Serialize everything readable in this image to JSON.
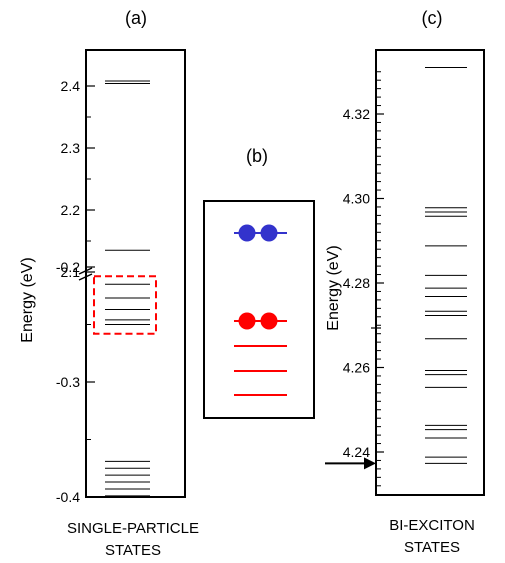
{
  "chart_data": [
    {
      "type": "level-diagram",
      "panel_label": "(a)",
      "ylabel": "Energy (eV)",
      "upper_segment": {
        "range": [
          2.1,
          2.43
        ],
        "tick_labels": [
          "2.1",
          "2.2",
          "2.3",
          "2.4"
        ]
      },
      "lower_segment": {
        "range": [
          -0.4,
          -0.175
        ],
        "tick_labels": [
          "-0.4",
          "-0.3",
          "-0.2"
        ]
      },
      "levels": [
        2.408,
        2.404,
        2.135,
        -0.215,
        -0.227,
        -0.237,
        -0.246,
        -0.25,
        -0.369,
        -0.375,
        -0.381,
        -0.387,
        -0.393,
        -0.399
      ],
      "highlight_box": {
        "from": -0.208,
        "to": -0.258,
        "color": "#ff0000"
      },
      "caption_lines": [
        "SINGLE-PARTICLE",
        "STATES"
      ]
    },
    {
      "type": "schematic",
      "panel_label": "(b)",
      "levels": [
        {
          "level": 1,
          "color": "#3333cc",
          "electrons": 2
        },
        {
          "level": 2,
          "color": "#ff0000",
          "electrons": 2
        },
        {
          "level": 3,
          "color": "#ff0000",
          "electrons": 0
        },
        {
          "level": 4,
          "color": "#ff0000",
          "electrons": 0
        },
        {
          "level": 5,
          "color": "#ff0000",
          "electrons": 0
        }
      ]
    },
    {
      "type": "level-diagram",
      "panel_label": "(c)",
      "ylabel": "Energy (eV)",
      "ylim": [
        4.231,
        4.334
      ],
      "tick_labels": [
        "4.24",
        "4.26",
        "4.28",
        "4.30",
        "4.32"
      ],
      "levels": [
        4.331,
        4.2978,
        4.2968,
        4.2958,
        4.2888,
        4.2818,
        4.2788,
        4.2768,
        4.2733,
        4.2723,
        4.2668,
        4.2593,
        4.2583,
        4.2553,
        4.2463,
        4.2453,
        4.2433,
        4.2388,
        4.2373
      ],
      "arrow_at": 4.2373,
      "caption_lines": [
        "BI-EXCITON",
        "STATES"
      ]
    }
  ]
}
